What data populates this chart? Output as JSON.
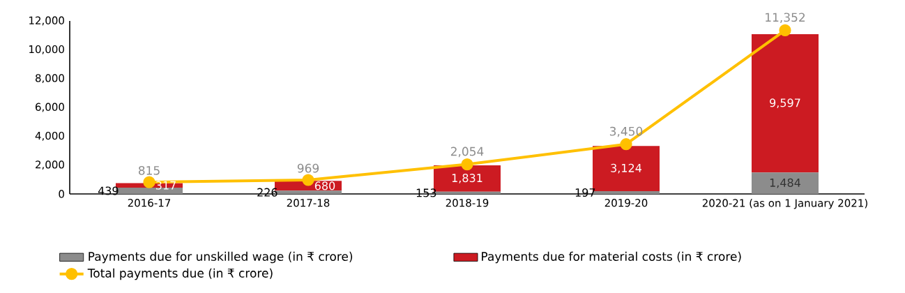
{
  "chart_data": {
    "type": "bar",
    "stacked": true,
    "categories": [
      "2016-17",
      "2017-18",
      "2018-19",
      "2019-20",
      "2020-21 (as on 1 January 2021)"
    ],
    "series": [
      {
        "name": "Payments due for unskilled wage (in ₹ crore)",
        "color": "#8c8c8c",
        "values": [
          439,
          226,
          153,
          197,
          1484
        ],
        "value_labels": [
          "439",
          "226",
          "153",
          "197",
          "1,484"
        ]
      },
      {
        "name": "Payments due for material costs (in ₹ crore)",
        "color": "#cc1b22",
        "values": [
          317,
          680,
          1831,
          3124,
          9597
        ],
        "value_labels": [
          "317",
          "680",
          "1,831",
          "3,124",
          "9,597"
        ]
      },
      {
        "name": "Total payments due (in ₹ crore)",
        "type": "line",
        "color": "#ffc000",
        "values": [
          815,
          969,
          2054,
          3450,
          11352
        ],
        "value_labels": [
          "815",
          "969",
          "2,054",
          "3,450",
          "11,352"
        ]
      }
    ],
    "ylim": [
      0,
      12000
    ],
    "yticks": [
      0,
      {
        "value": 2000,
        "label": "2,000"
      },
      {
        "value": 4000,
        "label": "4,000"
      },
      {
        "value": 6000,
        "label": "6,000"
      },
      {
        "value": 8000,
        "label": "8,000"
      },
      {
        "value": 10000,
        "label": "10,000"
      },
      {
        "value": 12000,
        "label": "12,000"
      }
    ],
    "marker": "circle",
    "legend": "bottom",
    "grid": false
  }
}
